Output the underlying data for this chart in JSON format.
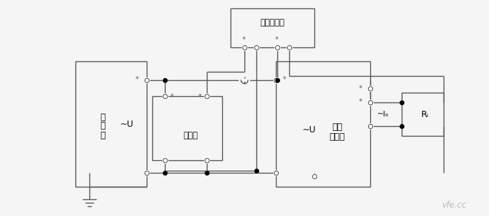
{
  "bg_color": "#f5f5f5",
  "line_color": "#555555",
  "lw": 1.0,
  "watermark": "vfe.cc",
  "labels": {
    "signal_source_1": "信",
    "signal_source_2": "号",
    "signal_source_3": "源",
    "tilde_u_left": "~U",
    "divider": "分压器",
    "std_phase": "标准相位计",
    "voltage_tx_1": "电压",
    "voltage_tx_2": "变送器",
    "tilde_u_right": "~U",
    "tilde_io": "~Iₒ",
    "ri_label": "Rᵢ",
    "star": "*"
  },
  "figsize": [
    7.0,
    3.1
  ],
  "dpi": 100
}
